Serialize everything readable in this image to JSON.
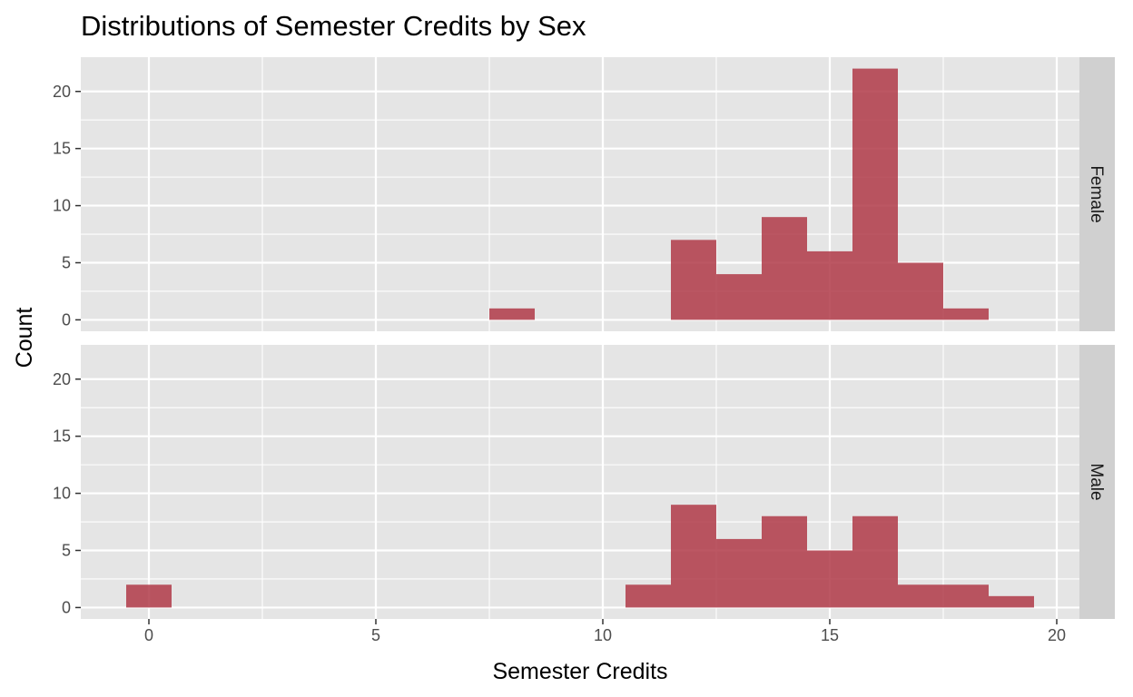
{
  "chart_data": {
    "type": "bar",
    "title": "Distributions of Semester Credits by Sex",
    "xlabel": "Semester Credits",
    "ylabel": "Count",
    "xlim": [
      -1.5,
      20.5
    ],
    "ylim": [
      -1,
      23
    ],
    "x_ticks": [
      0,
      5,
      10,
      15,
      20
    ],
    "y_ticks": [
      0,
      5,
      10,
      15,
      20
    ],
    "bin_width": 1,
    "bar_color": "#b03a48",
    "panel_bg": "#e5e5e5",
    "strip_bg": "#d0d0d0",
    "grid_color": "#ffffff",
    "grid": true,
    "facets": [
      {
        "label": "Female",
        "x": [
          8,
          12,
          13,
          14,
          15,
          16,
          17,
          18
        ],
        "values": [
          1,
          7,
          4,
          9,
          6,
          22,
          5,
          1
        ]
      },
      {
        "label": "Male",
        "x": [
          0,
          11,
          12,
          13,
          14,
          15,
          16,
          17,
          18,
          19
        ],
        "values": [
          2,
          2,
          9,
          6,
          8,
          5,
          8,
          2,
          2,
          1
        ]
      }
    ]
  }
}
